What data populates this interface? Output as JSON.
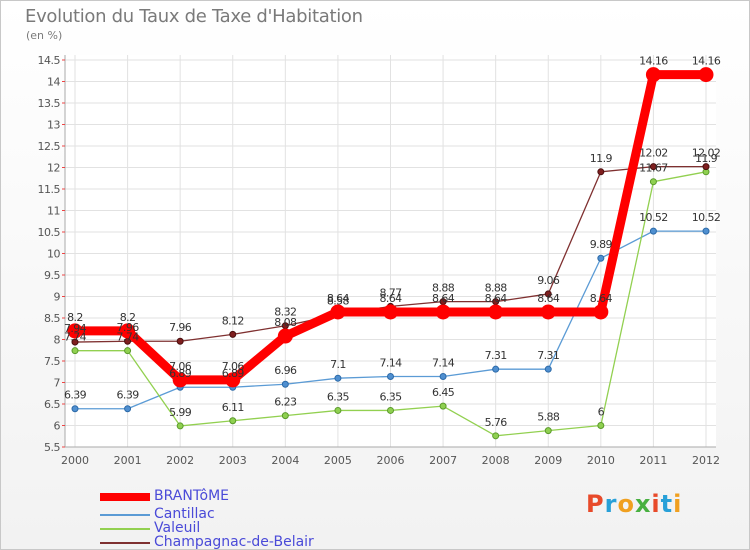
{
  "title": "Evolution du Taux de Taxe d'Habitation",
  "unit_label": "(en %)",
  "logo_text": "Proxiti",
  "colors": {
    "BRANTôME": "#ff0000",
    "Cantillac": "#5b9bd5",
    "Valeuil": "#92d050",
    "Champagnac-de-Belair": "#7f3030"
  },
  "chart_data": {
    "type": "line",
    "title": "Evolution du Taux de Taxe d'Habitation",
    "ylabel": "(en %)",
    "x": [
      "2000",
      "2001",
      "2002",
      "2003",
      "2004",
      "2005",
      "2006",
      "2007",
      "2008",
      "2009",
      "2010",
      "2011",
      "2012"
    ],
    "ylim": [
      5.5,
      14.5
    ],
    "yticks": [
      "5.5",
      "6",
      "6.5",
      "7",
      "7.5",
      "8",
      "8.5",
      "9",
      "9.5",
      "10",
      "10.5",
      "11",
      "11.5",
      "12",
      "12.5",
      "13",
      "13.5",
      "14",
      "14.5"
    ],
    "grid": true,
    "legend_position": "bottom-left",
    "series": [
      {
        "name": "BRANTôME",
        "values": [
          8.2,
          8.2,
          7.06,
          7.06,
          8.08,
          8.64,
          8.64,
          8.64,
          8.64,
          8.64,
          8.64,
          14.16,
          14.16
        ]
      },
      {
        "name": "Cantillac",
        "values": [
          6.39,
          6.39,
          6.89,
          6.89,
          6.96,
          7.1,
          7.14,
          7.14,
          7.31,
          7.31,
          9.89,
          10.52,
          10.52
        ]
      },
      {
        "name": "Valeuil",
        "values": [
          7.74,
          7.74,
          5.99,
          6.11,
          6.23,
          6.35,
          6.35,
          6.45,
          5.76,
          5.88,
          6.0,
          11.67,
          11.9
        ]
      },
      {
        "name": "Champagnac-de-Belair",
        "values": [
          7.94,
          7.96,
          7.96,
          8.12,
          8.32,
          8.58,
          8.77,
          8.88,
          8.88,
          9.06,
          11.9,
          12.02,
          12.02
        ]
      }
    ],
    "data_labels": [
      [
        "8.2",
        "8.2",
        "7.06",
        "7.06",
        "8.08",
        "8.64",
        "8.64",
        "8.64",
        "8.64",
        "8.64",
        "8.64",
        "14.16",
        "14.16"
      ],
      [
        "6.39",
        "6.39",
        "6.89",
        "6.89",
        "6.96",
        "7.1",
        "7.14",
        "7.14",
        "7.31",
        "7.31",
        "9.89",
        "10.52",
        "10.52"
      ],
      [
        "7.74",
        "7.74",
        "5.99",
        "6.11",
        "6.23",
        "6.35",
        "6.35",
        "6.45",
        "5.76",
        "5.88",
        "6",
        "11.67",
        "11.9"
      ],
      [
        "7.94",
        "7.96",
        "7.96",
        "8.12",
        "8.32",
        "8.58",
        "8.77",
        "8.88",
        "8.88",
        "9.06",
        "11.9",
        "12.02",
        "12.02"
      ]
    ]
  }
}
